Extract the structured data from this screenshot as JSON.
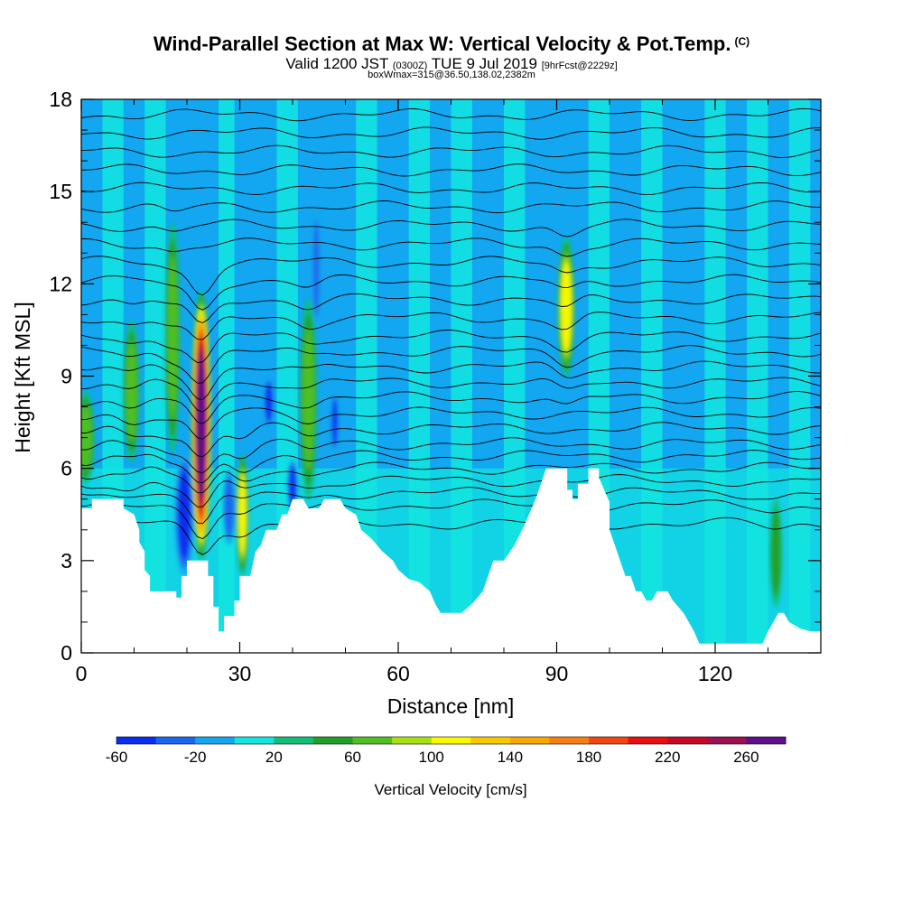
{
  "header": {
    "title": "Wind-Parallel Section at Max W: Vertical Velocity & Pot.Temp.",
    "copyright": "(C)",
    "subtitle_main": "Valid 1200 JST",
    "subtitle_utc": "(0300Z)",
    "subtitle_date": "TUE 9 Jul 2019",
    "subtitle_fcst": "[9hrFcst@2229z]",
    "boxline": "boxWmax=315@36.50,138.02,2382m"
  },
  "chart_data": {
    "type": "heatmap",
    "title": "Wind-Parallel Section at Max W: Vertical Velocity & Pot.Temp.",
    "xlabel": "Distance [nm]",
    "ylabel": "Height [Kft MSL]",
    "xlim": [
      0,
      140
    ],
    "ylim": [
      0,
      18
    ],
    "x_ticks": [
      "0",
      "30",
      "60",
      "90",
      "120"
    ],
    "y_ticks": [
      "0",
      "3",
      "6",
      "9",
      "12",
      "15",
      "18"
    ],
    "colorbar": {
      "label": "Vertical Velocity [cm/s]",
      "tick_labels": [
        "-60",
        "-20",
        "20",
        "60",
        "100",
        "140",
        "180",
        "220",
        "260"
      ],
      "colors": [
        "#0a2ef0",
        "#1a66ee",
        "#12a7f0",
        "#12e6e0",
        "#10c078",
        "#20a028",
        "#50c020",
        "#a8e010",
        "#f8f800",
        "#f8c800",
        "#f8a800",
        "#f88010",
        "#f04810",
        "#e81010",
        "#c80828",
        "#a01050",
        "#60108a"
      ]
    },
    "terrain_kft": [
      [
        0,
        4.7
      ],
      [
        2,
        4.7
      ],
      [
        2,
        5.0
      ],
      [
        8,
        5.0
      ],
      [
        8,
        4.7
      ],
      [
        10,
        4.5
      ],
      [
        11,
        4.0
      ],
      [
        11,
        3.6
      ],
      [
        12,
        3.3
      ],
      [
        12,
        2.7
      ],
      [
        13,
        2.5
      ],
      [
        13,
        2.0
      ],
      [
        18,
        2.0
      ],
      [
        18,
        1.8
      ],
      [
        19,
        1.8
      ],
      [
        19,
        2.5
      ],
      [
        20,
        2.5
      ],
      [
        20,
        3.0
      ],
      [
        24,
        3.0
      ],
      [
        24,
        2.5
      ],
      [
        25,
        2.5
      ],
      [
        25,
        1.5
      ],
      [
        26,
        1.5
      ],
      [
        26,
        0.7
      ],
      [
        27,
        0.7
      ],
      [
        27,
        1.2
      ],
      [
        29,
        1.2
      ],
      [
        29,
        1.7
      ],
      [
        30,
        1.7
      ],
      [
        30,
        2.5
      ],
      [
        32,
        2.5
      ],
      [
        33,
        3.3
      ],
      [
        34,
        3.5
      ],
      [
        35,
        4.0
      ],
      [
        37,
        4.0
      ],
      [
        38,
        4.5
      ],
      [
        39,
        4.5
      ],
      [
        40,
        5.0
      ],
      [
        42,
        5.0
      ],
      [
        43,
        4.7
      ],
      [
        45,
        4.7
      ],
      [
        46,
        5.0
      ],
      [
        49,
        5.0
      ],
      [
        50,
        4.7
      ],
      [
        52,
        4.5
      ],
      [
        53,
        4.0
      ],
      [
        55,
        3.7
      ],
      [
        57,
        3.3
      ],
      [
        59,
        3.0
      ],
      [
        60,
        2.7
      ],
      [
        62,
        2.4
      ],
      [
        64,
        2.3
      ],
      [
        66,
        2.0
      ],
      [
        67,
        1.6
      ],
      [
        68,
        1.3
      ],
      [
        72,
        1.3
      ],
      [
        74,
        1.6
      ],
      [
        76,
        2.0
      ],
      [
        77,
        2.5
      ],
      [
        78,
        3.0
      ],
      [
        80,
        3.0
      ],
      [
        82,
        3.5
      ],
      [
        84,
        4.2
      ],
      [
        86,
        5.0
      ],
      [
        87,
        5.5
      ],
      [
        88,
        6.0
      ],
      [
        92,
        6.0
      ],
      [
        92,
        5.3
      ],
      [
        93,
        5.3
      ],
      [
        93,
        5.0
      ],
      [
        94,
        5.0
      ],
      [
        94,
        5.5
      ],
      [
        96,
        5.5
      ],
      [
        96,
        6.0
      ],
      [
        98,
        6.0
      ],
      [
        98,
        5.7
      ],
      [
        99,
        5.3
      ],
      [
        100,
        4.9
      ],
      [
        100,
        4.0
      ],
      [
        101,
        3.5
      ],
      [
        102,
        3.0
      ],
      [
        103,
        2.5
      ],
      [
        104,
        2.5
      ],
      [
        105,
        2.0
      ],
      [
        106,
        2.0
      ],
      [
        107,
        1.7
      ],
      [
        108,
        1.7
      ],
      [
        109,
        2.0
      ],
      [
        111,
        2.0
      ],
      [
        112,
        1.7
      ],
      [
        113,
        1.5
      ],
      [
        114,
        1.3
      ],
      [
        115,
        1.0
      ],
      [
        116,
        0.7
      ],
      [
        117,
        0.3
      ],
      [
        129,
        0.3
      ],
      [
        130,
        0.7
      ],
      [
        131,
        1.0
      ],
      [
        132,
        1.3
      ],
      [
        133,
        1.3
      ],
      [
        134,
        1.0
      ],
      [
        136,
        0.8
      ],
      [
        138,
        0.7
      ],
      [
        140,
        0.7
      ]
    ],
    "updraft_cores": [
      {
        "x": 22.7,
        "x_width": 1.6,
        "y_bottom": 3.0,
        "y_top": 11.8,
        "peak_cm_s": 260
      },
      {
        "x": 17.3,
        "x_width": 1.2,
        "y_bottom": 6.5,
        "y_top": 14.0,
        "peak_cm_s": 60
      },
      {
        "x": 9.5,
        "x_width": 1.3,
        "y_bottom": 6.2,
        "y_top": 10.8,
        "peak_cm_s": 60
      },
      {
        "x": 30.5,
        "x_width": 1.0,
        "y_bottom": 2.5,
        "y_top": 6.5,
        "peak_cm_s": 100
      },
      {
        "x": 43.0,
        "x_width": 1.4,
        "y_bottom": 5.0,
        "y_top": 11.5,
        "peak_cm_s": 60
      },
      {
        "x": 91.8,
        "x_width": 1.4,
        "y_bottom": 9.0,
        "y_top": 13.5,
        "peak_cm_s": 100
      },
      {
        "x": 0.8,
        "x_width": 1.5,
        "y_bottom": 5.5,
        "y_top": 8.5,
        "peak_cm_s": 60
      },
      {
        "x": 131.5,
        "x_width": 1.0,
        "y_bottom": 1.5,
        "y_top": 5.0,
        "peak_cm_s": 40
      }
    ],
    "downdraft_cores": [
      {
        "x": 19.5,
        "x_width": 1.5,
        "y_bottom": 2.5,
        "y_top": 6.5,
        "peak_cm_s": -60
      },
      {
        "x": 35.5,
        "x_width": 0.8,
        "y_bottom": 7.3,
        "y_top": 9.0,
        "peak_cm_s": -60
      },
      {
        "x": 44.5,
        "x_width": 0.6,
        "y_bottom": 10.5,
        "y_top": 14.5,
        "peak_cm_s": -40
      },
      {
        "x": 48.0,
        "x_width": 0.6,
        "y_bottom": 6.5,
        "y_top": 8.5,
        "peak_cm_s": -60
      },
      {
        "x": 40.0,
        "x_width": 0.8,
        "y_bottom": 4.5,
        "y_top": 6.3,
        "peak_cm_s": -60
      },
      {
        "x": 28.0,
        "x_width": 1.0,
        "y_bottom": 3.5,
        "y_top": 6.0,
        "peak_cm_s": -40
      }
    ],
    "theta_contour_kft": [
      4.2,
      4.8,
      5.2,
      5.6,
      6.0,
      6.4,
      6.8,
      7.3,
      7.8,
      8.3,
      8.8,
      9.3,
      9.8,
      10.3,
      10.9,
      11.5,
      12.1,
      12.7,
      13.3,
      13.9,
      14.5,
      15.1,
      15.7,
      16.3,
      16.9,
      17.5
    ]
  }
}
